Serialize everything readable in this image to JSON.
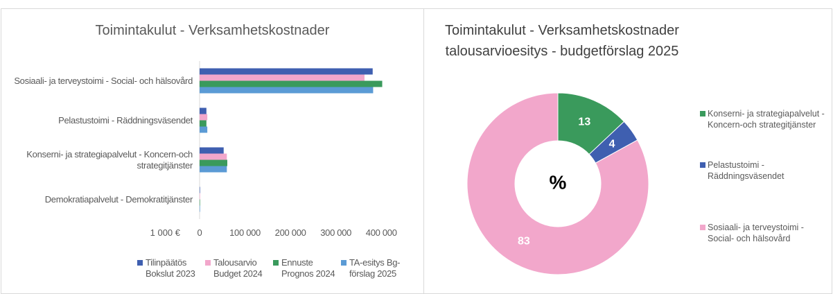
{
  "chart_data": [
    {
      "type": "bar",
      "orientation": "horizontal",
      "title": "Toimintakulut - Verksamhetskostnader",
      "categories": [
        "Sosiaali- ja terveystoimi - Social- och hälsovård",
        "Pelastustoimi - Räddningsväsendet",
        "Konserni- ja strategiapalvelut - Koncern-och strategitjänster",
        "Demokratiapalvelut - Demokratitjänster"
      ],
      "series": [
        {
          "name": "Tilinpäätös Bokslut 2023",
          "color": "#3f5fb0",
          "values": [
            381000,
            15000,
            53000,
            1000
          ]
        },
        {
          "name": "Talousarvio Budget 2024",
          "color": "#f2a7cb",
          "values": [
            363000,
            17000,
            60000,
            1000
          ]
        },
        {
          "name": "Ennuste Prognos 2024",
          "color": "#3a9a5c",
          "values": [
            402000,
            15000,
            61000,
            1000
          ]
        },
        {
          "name": "TA-esitys Bg-förslag 2025",
          "color": "#5b9bd5",
          "values": [
            382000,
            17000,
            60000,
            1000
          ]
        }
      ],
      "xlabel": "1 000 €",
      "xlim": [
        0,
        450000
      ],
      "xticks": [
        0,
        {
          "value": 100000,
          "label": "100 000"
        },
        {
          "value": 200000,
          "label": "200 000"
        },
        {
          "value": 300000,
          "label": "300 000"
        },
        {
          "value": 400000,
          "label": "400 000"
        }
      ],
      "legend": "bottom"
    },
    {
      "type": "pie",
      "donut": true,
      "title": "Toimintakulut - Verksamhetskostnader",
      "subtitle": "talousarvioesitys - budgetförslag 2025",
      "center_label": "%",
      "categories": [
        "Konserni- ja strategiapalvelut - Koncern-och strategitjänster",
        "Pelastustoimi - Räddningsväsendet",
        "Sosiaali- ja terveystoimi - Social- och hälsovård"
      ],
      "values": [
        13,
        4,
        83
      ],
      "colors": [
        "#3a9a5c",
        "#3f5fb0",
        "#f2a7cb"
      ],
      "legend": "right"
    }
  ]
}
